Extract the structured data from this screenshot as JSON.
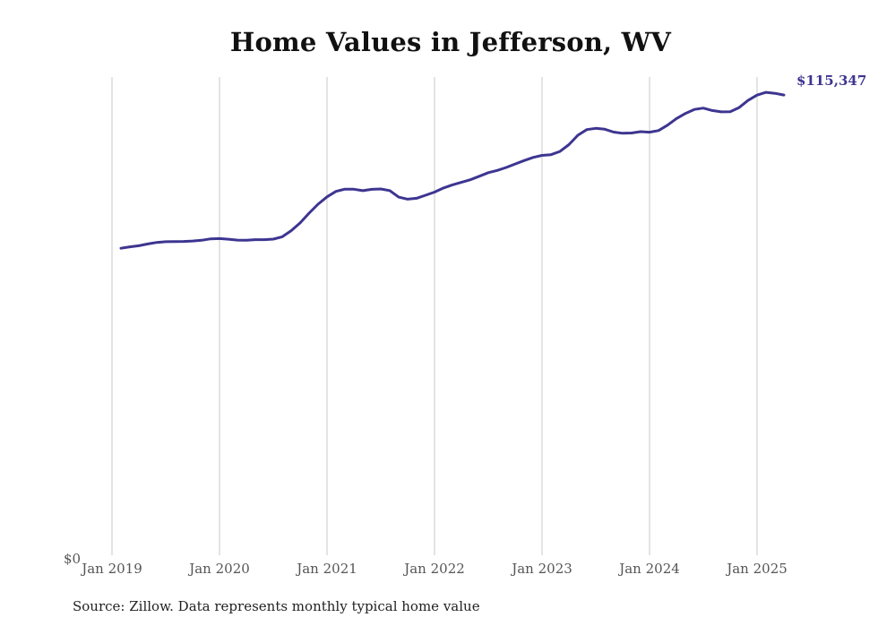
{
  "chart_data": {
    "type": "line",
    "title": "Home Values in Jefferson, WV",
    "xlabel": "",
    "ylabel": "",
    "x_ticks": [
      "Jan 2019",
      "Jan 2020",
      "Jan 2021",
      "Jan 2022",
      "Jan 2023",
      "Jan 2024",
      "Jan 2025"
    ],
    "y_tick_label": "$0",
    "end_label": "$115,347",
    "ylim": [
      0,
      122000
    ],
    "grid": "vertical",
    "series": [
      {
        "color": "#3d3590",
        "x": [
          "2019-02",
          "2019-03",
          "2019-04",
          "2019-05",
          "2019-06",
          "2019-07",
          "2019-08",
          "2019-09",
          "2019-10",
          "2019-11",
          "2019-12",
          "2020-01",
          "2020-02",
          "2020-03",
          "2020-04",
          "2020-05",
          "2020-06",
          "2020-07",
          "2020-08",
          "2020-09",
          "2020-10",
          "2020-11",
          "2020-12",
          "2021-01",
          "2021-02",
          "2021-03",
          "2021-04",
          "2021-05",
          "2021-06",
          "2021-07",
          "2021-08",
          "2021-09",
          "2021-10",
          "2021-11",
          "2021-12",
          "2022-01",
          "2022-02",
          "2022-03",
          "2022-04",
          "2022-05",
          "2022-06",
          "2022-07",
          "2022-08",
          "2022-09",
          "2022-10",
          "2022-11",
          "2022-12",
          "2023-01",
          "2023-02",
          "2023-03",
          "2023-04",
          "2023-05",
          "2023-06",
          "2023-07",
          "2023-08",
          "2023-09",
          "2023-10",
          "2023-11",
          "2023-12",
          "2024-01",
          "2024-02",
          "2024-03",
          "2024-04",
          "2024-05",
          "2024-06",
          "2024-07",
          "2024-08",
          "2024-09",
          "2024-10",
          "2024-11",
          "2024-12",
          "2025-01",
          "2025-02",
          "2025-03",
          "2025-04"
        ],
        "values": [
          76950,
          77300,
          77570,
          78020,
          78400,
          78590,
          78640,
          78660,
          78770,
          78950,
          79310,
          79370,
          79220,
          78990,
          78950,
          79100,
          79110,
          79240,
          79830,
          81350,
          83310,
          85740,
          87990,
          89830,
          91190,
          91760,
          91740,
          91390,
          91710,
          91800,
          91400,
          89770,
          89250,
          89470,
          90230,
          91020,
          92060,
          92830,
          93460,
          94120,
          95000,
          95890,
          96450,
          97200,
          98060,
          98920,
          99710,
          100230,
          100410,
          101210,
          102920,
          105270,
          106700,
          107010,
          106780,
          106070,
          105770,
          105830,
          106170,
          106030,
          106450,
          107800,
          109440,
          110740,
          111730,
          112080,
          111460,
          111140,
          111170,
          112200,
          114010,
          115320,
          116030,
          115770,
          115347
        ]
      }
    ]
  },
  "footer": {
    "source": "Source: Zillow. Data represents monthly typical home value"
  }
}
